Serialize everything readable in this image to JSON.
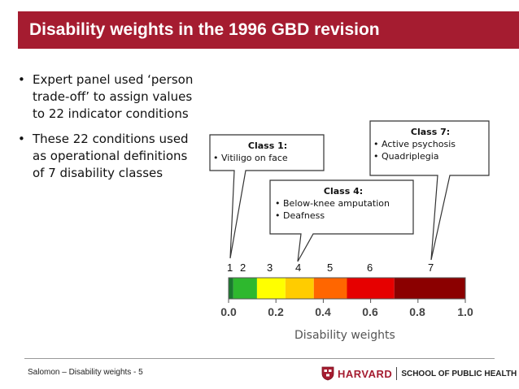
{
  "title": "Disability weights in the 1996 GBD revision",
  "bullets": [
    {
      "marker": "•",
      "line1": "Expert panel used ‘person",
      "line2": "trade-off’ to assign values",
      "line3": "to 22 indicator conditions"
    },
    {
      "marker": "•",
      "line1": "These 22 conditions used",
      "line2": "as operational definitions",
      "line3": "of 7 disability classes"
    }
  ],
  "callouts": {
    "class1": {
      "title": "Class 1:",
      "items": [
        "Vitiligo on face"
      ]
    },
    "class4": {
      "title": "Class 4:",
      "items": [
        "Below-knee amputation",
        "Deafness"
      ]
    },
    "class7": {
      "title": "Class 7:",
      "items": [
        "Active psychosis",
        "Quadriplegia"
      ]
    }
  },
  "colors": {
    "title_bar": "#a51c30",
    "class_colors": [
      "#1a7a2e",
      "#2eb82e",
      "#ffff00",
      "#ffcc00",
      "#ff6600",
      "#e60000",
      "#b30000",
      "#8b0000"
    ]
  },
  "scale": {
    "class_numbers": [
      "1",
      "2",
      "3",
      "4",
      "5",
      "6",
      "7"
    ],
    "tick_labels": [
      "0.0",
      "0.2",
      "0.4",
      "0.6",
      "0.8",
      "1.0"
    ],
    "axis_title": "Disability weights",
    "segments": [
      {
        "from": 0.0,
        "to": 0.02
      },
      {
        "from": 0.02,
        "to": 0.12
      },
      {
        "from": 0.12,
        "to": 0.24
      },
      {
        "from": 0.24,
        "to": 0.36
      },
      {
        "from": 0.36,
        "to": 0.5
      },
      {
        "from": 0.5,
        "to": 0.7
      },
      {
        "from": 0.7,
        "to": 1.0
      }
    ]
  },
  "footer": {
    "text": "Salomon – Disability weights - 5",
    "logo_name": "HARVARD",
    "logo_school": "SCHOOL OF PUBLIC HEALTH"
  }
}
